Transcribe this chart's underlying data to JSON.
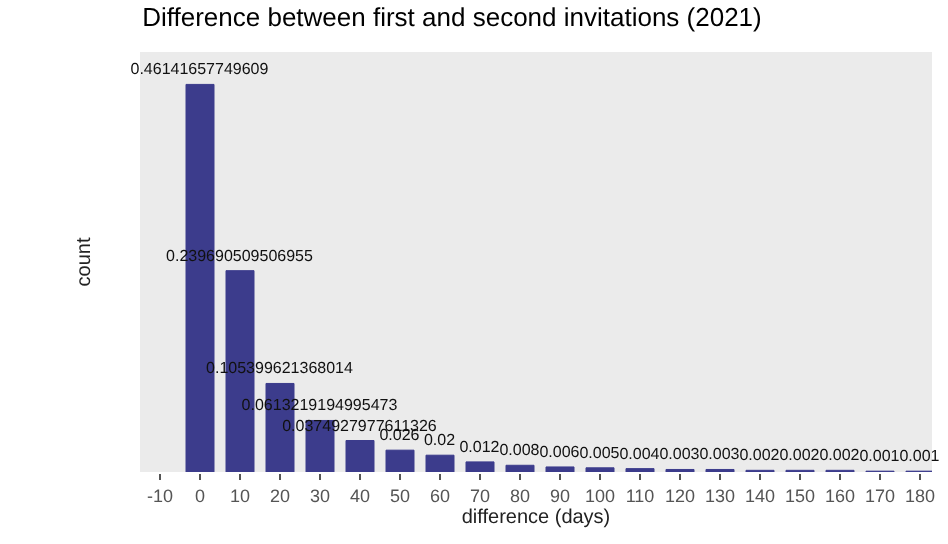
{
  "chart_data": {
    "type": "bar",
    "title": "Difference between first and second invitations (2021)",
    "xlabel": "difference (days)",
    "ylabel": "count",
    "x": [
      0,
      10,
      20,
      30,
      40,
      50,
      60,
      70,
      80,
      90,
      100,
      110,
      120,
      130,
      140,
      150,
      160,
      170,
      180
    ],
    "values": [
      0.46141657749609,
      0.239690509506955,
      0.105399621368014,
      0.0613219194995473,
      0.0374927977611326,
      0.026,
      0.02,
      0.012,
      0.008,
      0.006,
      0.005,
      0.004,
      0.003,
      0.003,
      0.002,
      0.002,
      0.002,
      0.001,
      0.001
    ],
    "color": "#3c3c8c",
    "data_labels": true,
    "xlim": [
      -15,
      183
    ],
    "ylim": [
      0,
      0.5
    ],
    "xticks": [
      -10,
      0,
      10,
      20,
      30,
      40,
      50,
      60,
      70,
      80,
      90,
      100,
      110,
      120,
      130,
      140,
      150,
      160,
      170,
      180
    ],
    "tick_labels": "x",
    "grid": false
  }
}
